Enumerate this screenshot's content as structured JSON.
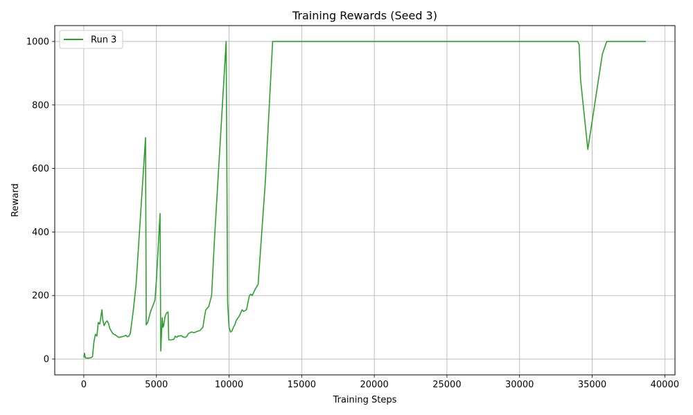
{
  "chart_data": {
    "type": "line",
    "title": "Training Rewards (Seed 3)",
    "xlabel": "Training Steps",
    "ylabel": "Reward",
    "xlim": [
      -2000,
      40700
    ],
    "ylim": [
      -50,
      1050
    ],
    "xticks": [
      0,
      5000,
      10000,
      15000,
      20000,
      25000,
      30000,
      35000,
      40000
    ],
    "yticks": [
      0,
      200,
      400,
      600,
      800,
      1000
    ],
    "grid": true,
    "legend_position": "top-left",
    "series": [
      {
        "name": "Run 3",
        "color": "#2ca02c",
        "x": [
          0,
          50,
          100,
          200,
          300,
          500,
          600,
          700,
          800,
          900,
          1000,
          1100,
          1200,
          1250,
          1300,
          1400,
          1500,
          1600,
          1700,
          1800,
          2000,
          2200,
          2400,
          2600,
          2800,
          2900,
          3000,
          3100,
          3200,
          3400,
          3600,
          4250,
          4300,
          4400,
          4600,
          4900,
          5000,
          5250,
          5300,
          5400,
          5450,
          5500,
          5600,
          5700,
          5800,
          5850,
          6000,
          6200,
          6300,
          6400,
          6500,
          6600,
          6700,
          6800,
          7000,
          7100,
          7200,
          7400,
          7600,
          7800,
          8000,
          8200,
          8300,
          8400,
          8600,
          8800,
          9000,
          9800,
          9850,
          9900,
          10000,
          10100,
          10200,
          10300,
          10400,
          10500,
          10700,
          10900,
          11000,
          11200,
          11400,
          11500,
          11600,
          11800,
          12000,
          12100,
          12500,
          13000,
          13400,
          14000,
          20000,
          25000,
          30000,
          34000,
          34100,
          34200,
          34700,
          35100,
          35700,
          36000,
          38700
        ],
        "y": [
          5,
          18,
          4,
          3,
          3,
          4,
          8,
          55,
          78,
          72,
          115,
          110,
          140,
          155,
          125,
          105,
          115,
          120,
          112,
          95,
          80,
          75,
          68,
          70,
          72,
          75,
          70,
          72,
          80,
          150,
          235,
          697,
          108,
          115,
          150,
          185,
          250,
          458,
          25,
          130,
          100,
          105,
          135,
          145,
          148,
          60,
          60,
          62,
          72,
          68,
          73,
          72,
          74,
          70,
          68,
          72,
          80,
          85,
          83,
          87,
          90,
          100,
          130,
          155,
          165,
          200,
          380,
          1000,
          600,
          180,
          100,
          85,
          88,
          100,
          108,
          122,
          135,
          155,
          150,
          155,
          200,
          204,
          200,
          220,
          235,
          300,
          560,
          1000,
          1000,
          1000,
          1000,
          1000,
          1000,
          1000,
          990,
          880,
          660,
          780,
          960,
          1000,
          1000
        ]
      }
    ]
  }
}
